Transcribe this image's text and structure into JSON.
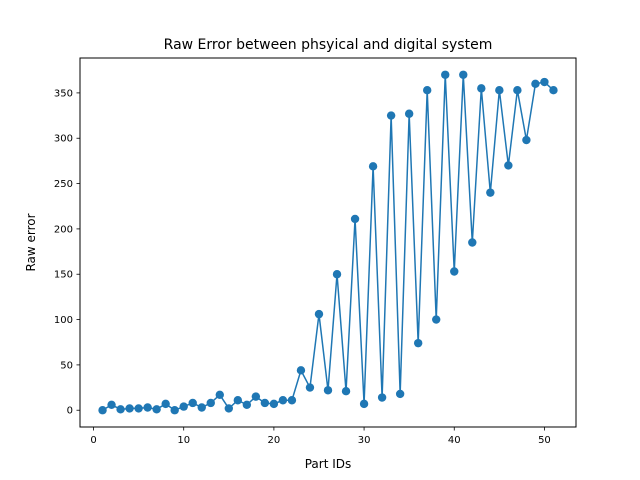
{
  "chart_data": {
    "type": "line",
    "title": "Raw Error between phsyical and digital system",
    "xlabel": "Part IDs",
    "ylabel": "Raw error",
    "xlim": [
      -1.5,
      53.5
    ],
    "ylim": [
      -18.5,
      388.5
    ],
    "x_ticks": [
      0,
      10,
      20,
      30,
      40,
      50
    ],
    "y_ticks": [
      0,
      50,
      100,
      150,
      200,
      250,
      300,
      350
    ],
    "grid": false,
    "markers": true,
    "color": "#1f77b4",
    "series": [
      {
        "x": [
          1,
          2,
          3,
          4,
          5,
          6,
          7,
          8,
          9,
          10,
          11,
          12,
          13,
          14,
          15,
          16,
          17,
          18,
          19,
          20,
          21,
          22,
          23,
          24,
          25,
          26,
          27,
          28,
          29,
          30,
          31,
          32,
          33,
          34,
          35,
          36,
          37,
          38,
          39,
          40,
          41,
          42,
          43,
          44,
          45,
          46,
          47,
          48,
          49,
          50,
          51
        ],
        "y": [
          0,
          6,
          1,
          2,
          2,
          3,
          1,
          7,
          0,
          4,
          8,
          3,
          8,
          17,
          2,
          11,
          6,
          15,
          8,
          7,
          11,
          11,
          44,
          25,
          106,
          22,
          150,
          21,
          211,
          7,
          269,
          14,
          325,
          18,
          327,
          74,
          353,
          100,
          370,
          153,
          370,
          185,
          355,
          240,
          353,
          270,
          353,
          298,
          360,
          362,
          353
        ]
      }
    ]
  }
}
